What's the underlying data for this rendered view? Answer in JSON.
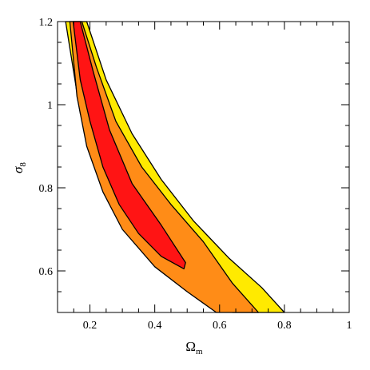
{
  "chart_data": {
    "type": "area",
    "xlabel": {
      "symbol": "Ω",
      "subscript": "m"
    },
    "ylabel": {
      "symbol": "σ",
      "subscript": "8"
    },
    "xlim": [
      0.1,
      1.0
    ],
    "ylim": [
      0.5,
      1.2
    ],
    "x_ticks": [
      0.2,
      0.4,
      0.6,
      0.8,
      1.0
    ],
    "x_tick_labels": [
      "0.2",
      "0.4",
      "0.6",
      "0.8",
      "1"
    ],
    "y_ticks": [
      0.6,
      0.8,
      1.0,
      1.2
    ],
    "y_tick_labels": [
      "0.6",
      "0.8",
      "1",
      "1.2"
    ],
    "x_minor_step": 0.05,
    "y_minor_step": 0.05,
    "grid": false,
    "legend": "none",
    "series": [
      {
        "level": "outer",
        "color": "#ffea00",
        "points": [
          [
            0.125,
            1.2
          ],
          [
            0.19,
            1.2
          ],
          [
            0.25,
            1.06
          ],
          [
            0.33,
            0.93
          ],
          [
            0.42,
            0.82
          ],
          [
            0.52,
            0.72
          ],
          [
            0.63,
            0.63
          ],
          [
            0.73,
            0.56
          ],
          [
            0.8,
            0.5
          ],
          [
            0.64,
            0.5
          ],
          [
            0.56,
            0.54
          ],
          [
            0.46,
            0.6
          ],
          [
            0.36,
            0.66
          ],
          [
            0.28,
            0.74
          ],
          [
            0.22,
            0.84
          ],
          [
            0.17,
            0.98
          ],
          [
            0.125,
            1.2
          ]
        ]
      },
      {
        "level": "middle",
        "color": "#ff8c17",
        "points": [
          [
            0.138,
            1.2
          ],
          [
            0.175,
            1.2
          ],
          [
            0.22,
            1.09
          ],
          [
            0.28,
            0.96
          ],
          [
            0.36,
            0.85
          ],
          [
            0.45,
            0.76
          ],
          [
            0.55,
            0.67
          ],
          [
            0.64,
            0.57
          ],
          [
            0.72,
            0.5
          ],
          [
            0.59,
            0.5
          ],
          [
            0.5,
            0.55
          ],
          [
            0.4,
            0.61
          ],
          [
            0.3,
            0.7
          ],
          [
            0.24,
            0.79
          ],
          [
            0.19,
            0.9
          ],
          [
            0.16,
            1.02
          ],
          [
            0.138,
            1.2
          ]
        ]
      },
      {
        "level": "inner",
        "color": "#ff1414",
        "points": [
          [
            0.148,
            1.2
          ],
          [
            0.17,
            1.2
          ],
          [
            0.21,
            1.08
          ],
          [
            0.26,
            0.94
          ],
          [
            0.33,
            0.81
          ],
          [
            0.42,
            0.71
          ],
          [
            0.495,
            0.62
          ],
          [
            0.49,
            0.605
          ],
          [
            0.42,
            0.635
          ],
          [
            0.35,
            0.69
          ],
          [
            0.29,
            0.76
          ],
          [
            0.24,
            0.85
          ],
          [
            0.2,
            0.96
          ],
          [
            0.17,
            1.06
          ],
          [
            0.148,
            1.2
          ]
        ]
      }
    ]
  }
}
